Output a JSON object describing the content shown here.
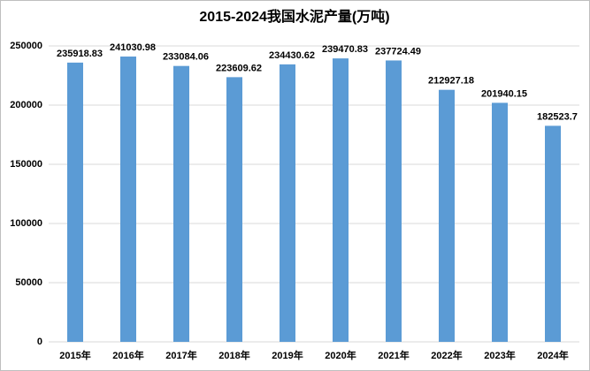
{
  "chart_data": {
    "type": "bar",
    "title": "2015-2024我国水泥产量(万吨)",
    "categories": [
      "2015年",
      "2016年",
      "2017年",
      "2018年",
      "2019年",
      "2020年",
      "2021年",
      "2022年",
      "2023年",
      "2024年"
    ],
    "values": [
      235918.83,
      241030.98,
      233084.06,
      223609.62,
      234430.62,
      239470.83,
      237724.49,
      212927.18,
      201940.15,
      182523.7
    ],
    "color": "#5b9bd5",
    "ylim": [
      0,
      250000
    ],
    "yticks": [
      0,
      50000,
      100000,
      150000,
      200000,
      250000
    ],
    "grid": true
  }
}
